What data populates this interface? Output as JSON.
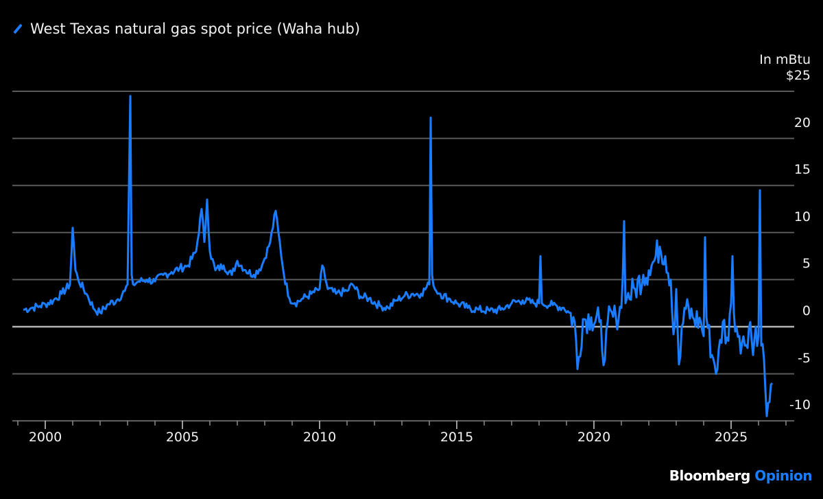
{
  "legend": {
    "label": "West Texas natural gas spot price (Waha hub)",
    "color": "#1a7cff"
  },
  "yaxis": {
    "unit": "In mBtu",
    "ticks": [
      "$25",
      "20",
      "15",
      "10",
      "5",
      "0",
      "-5",
      "-10"
    ]
  },
  "xaxis": {
    "ticks": [
      "2000",
      "2005",
      "2010",
      "2015",
      "2020",
      "2025"
    ]
  },
  "brand": {
    "name": "Bloomberg",
    "section": "Opinion"
  },
  "colors": {
    "background": "#000000",
    "line": "#1a7cff",
    "grid": "#5a5a5a",
    "zero": "#b4b4b4",
    "text": "#f2f2f2"
  },
  "chart_data": {
    "type": "line",
    "title": "West Texas natural gas spot price (Waha hub)",
    "xlabel": "",
    "ylabel": "In mBtu ($)",
    "ylim": [
      -10,
      25
    ],
    "xlim": [
      1999.0,
      2027.2
    ],
    "grid": true,
    "legend_position": "top-left",
    "y_ticks": [
      25,
      20,
      15,
      10,
      5,
      0,
      -5,
      -10
    ],
    "x_ticks": [
      2000,
      2005,
      2010,
      2015,
      2020,
      2025
    ],
    "series": [
      {
        "name": "West Texas natural gas spot price (Waha hub)",
        "x": [
          1999.2,
          1999.5,
          1999.8,
          2000.0,
          2000.3,
          2000.6,
          2000.9,
          2001.0,
          2001.1,
          2001.2,
          2001.5,
          2001.8,
          2002.0,
          2002.3,
          2002.6,
          2002.9,
          2003.0,
          2003.1,
          2003.15,
          2003.2,
          2003.4,
          2003.7,
          2004.0,
          2004.3,
          2004.6,
          2004.9,
          2005.2,
          2005.5,
          2005.7,
          2005.8,
          2005.9,
          2006.0,
          2006.2,
          2006.5,
          2006.8,
          2007.0,
          2007.3,
          2007.6,
          2007.9,
          2008.2,
          2008.4,
          2008.5,
          2008.7,
          2008.9,
          2009.1,
          2009.4,
          2009.7,
          2010.0,
          2010.1,
          2010.3,
          2010.6,
          2011.0,
          2011.2,
          2011.5,
          2011.8,
          2012.2,
          2012.5,
          2012.8,
          2013.1,
          2013.4,
          2013.7,
          2014.0,
          2014.05,
          2014.1,
          2014.2,
          2014.4,
          2014.7,
          2015.0,
          2015.4,
          2015.8,
          2016.2,
          2016.6,
          2017.0,
          2017.4,
          2017.8,
          2018.0,
          2018.05,
          2018.1,
          2018.5,
          2018.9,
          2019.1,
          2019.3,
          2019.4,
          2019.6,
          2019.9,
          2020.2,
          2020.4,
          2020.5,
          2020.8,
          2021.0,
          2021.1,
          2021.15,
          2021.2,
          2021.5,
          2021.8,
          2022.0,
          2022.2,
          2022.4,
          2022.6,
          2022.8,
          2022.9,
          2023.0,
          2023.1,
          2023.3,
          2023.6,
          2023.9,
          2024.0,
          2024.05,
          2024.1,
          2024.3,
          2024.5,
          2024.7,
          2024.9,
          2025.0,
          2025.05,
          2025.1,
          2025.3,
          2025.5,
          2025.7,
          2025.8,
          2025.9,
          2026.0,
          2026.05,
          2026.1,
          2026.2,
          2026.3,
          2026.4,
          2026.5
        ],
        "values": [
          1.8,
          2.0,
          2.2,
          2.4,
          2.8,
          3.5,
          4.5,
          10.5,
          6.0,
          5.0,
          3.5,
          1.8,
          1.5,
          2.4,
          2.8,
          3.8,
          4.5,
          24.5,
          5.5,
          4.5,
          4.8,
          5.0,
          4.8,
          5.5,
          5.8,
          6.2,
          6.5,
          8.0,
          12.5,
          9.0,
          13.5,
          8.0,
          6.0,
          6.5,
          5.5,
          7.0,
          6.0,
          5.5,
          6.5,
          9.0,
          12.3,
          10.0,
          5.5,
          3.0,
          2.5,
          3.0,
          3.5,
          4.0,
          6.5,
          4.0,
          3.5,
          3.8,
          4.5,
          3.2,
          3.0,
          2.2,
          2.0,
          2.8,
          3.3,
          3.5,
          3.5,
          4.5,
          22.2,
          5.5,
          4.0,
          3.5,
          3.0,
          2.5,
          2.0,
          1.8,
          1.7,
          1.8,
          2.5,
          2.8,
          2.5,
          2.5,
          7.5,
          2.5,
          2.3,
          2.0,
          1.5,
          0.5,
          -4.5,
          0.8,
          1.0,
          0.5,
          -3.5,
          0.5,
          1.0,
          2.0,
          11.2,
          2.5,
          3.0,
          4.0,
          5.5,
          6.0,
          7.0,
          8.5,
          7.5,
          5.0,
          -0.8,
          4.0,
          -4.0,
          2.0,
          1.0,
          0.5,
          -1.0,
          9.5,
          1.0,
          -3.0,
          -4.5,
          0.5,
          -1.5,
          2.5,
          7.5,
          1.5,
          -1.0,
          -2.0,
          0.5,
          -3.0,
          0.0,
          -1.0,
          14.5,
          -2.0,
          -3.5,
          -9.5,
          -8.0,
          -6.0
        ]
      }
    ],
    "annotations": []
  }
}
